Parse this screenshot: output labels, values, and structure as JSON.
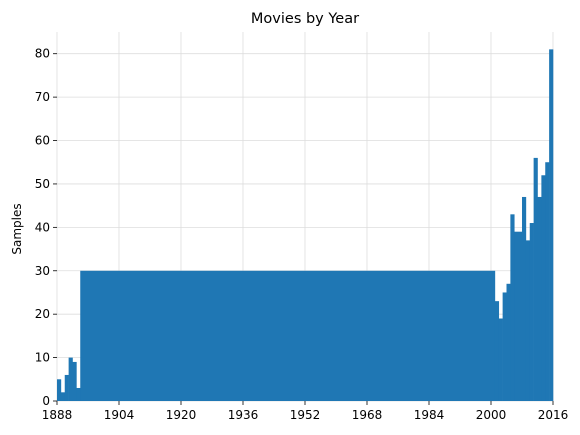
{
  "chart_data": {
    "type": "bar",
    "title": "Movies by Year",
    "xlabel": "",
    "ylabel": "Samples",
    "xlim": [
      1888,
      2016
    ],
    "ylim": [
      0,
      85
    ],
    "x_ticks": [
      "1888",
      "1904",
      "1920",
      "1936",
      "1952",
      "1968",
      "1984",
      "2000",
      "2016"
    ],
    "y_ticks": [
      "0",
      "10",
      "20",
      "30",
      "40",
      "50",
      "60",
      "70",
      "80"
    ],
    "grid": true,
    "bar_color": "#1f77b4",
    "bins": [
      {
        "start": 1888,
        "end": 1889,
        "value": 5
      },
      {
        "start": 1889,
        "end": 1890,
        "value": 2
      },
      {
        "start": 1890,
        "end": 1891,
        "value": 6
      },
      {
        "start": 1891,
        "end": 1892,
        "value": 10
      },
      {
        "start": 1892,
        "end": 1893,
        "value": 9
      },
      {
        "start": 1893,
        "end": 1894,
        "value": 3
      },
      {
        "start": 1894,
        "end": 2001,
        "value": 30
      },
      {
        "start": 2001,
        "end": 2002,
        "value": 23
      },
      {
        "start": 2002,
        "end": 2003,
        "value": 19
      },
      {
        "start": 2003,
        "end": 2004,
        "value": 25
      },
      {
        "start": 2004,
        "end": 2005,
        "value": 27
      },
      {
        "start": 2005,
        "end": 2006,
        "value": 43
      },
      {
        "start": 2006,
        "end": 2008,
        "value": 39
      },
      {
        "start": 2008,
        "end": 2009,
        "value": 47
      },
      {
        "start": 2009,
        "end": 2010,
        "value": 37
      },
      {
        "start": 2010,
        "end": 2011,
        "value": 41
      },
      {
        "start": 2011,
        "end": 2012,
        "value": 56
      },
      {
        "start": 2012,
        "end": 2013,
        "value": 47
      },
      {
        "start": 2013,
        "end": 2014,
        "value": 52
      },
      {
        "start": 2014,
        "end": 2015,
        "value": 55
      },
      {
        "start": 2015,
        "end": 2016,
        "value": 81
      }
    ]
  }
}
